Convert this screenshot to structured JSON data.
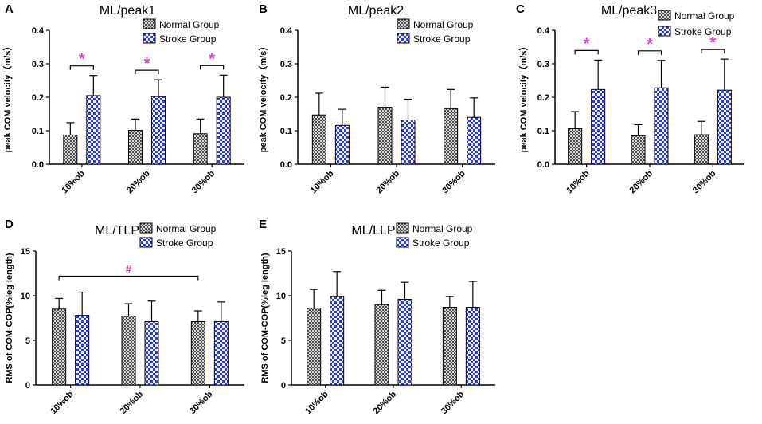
{
  "legend": {
    "normal": "Normal Group",
    "stroke": "Stroke Group"
  },
  "colors": {
    "normal_fill": "#9a9a9a",
    "stroke_fill": "#2b39e6",
    "significance": "#e83ecb",
    "axis": "#000000"
  },
  "chart_data": [
    {
      "type": "bar",
      "panel": "A",
      "title": "ML/peak1",
      "ylabel": "peak COM velocity（m/s）",
      "ylim": [
        0,
        0.4
      ],
      "yticks": [
        "0.0",
        "0.1",
        "0.2",
        "0.3",
        "0.4"
      ],
      "categories": [
        "10%ob",
        "20%ob",
        "30%ob"
      ],
      "series": [
        {
          "name": "Normal Group",
          "values": [
            0.087,
            0.101,
            0.091
          ],
          "errors": [
            0.037,
            0.034,
            0.044
          ]
        },
        {
          "name": "Stroke Group",
          "values": [
            0.205,
            0.202,
            0.2
          ],
          "errors": [
            0.06,
            0.05,
            0.066
          ]
        }
      ],
      "annotations": [
        {
          "type": "pair",
          "category": 0,
          "symbol": "*"
        },
        {
          "type": "pair",
          "category": 1,
          "symbol": "*"
        },
        {
          "type": "pair",
          "category": 2,
          "symbol": "*"
        }
      ]
    },
    {
      "type": "bar",
      "panel": "B",
      "title": "ML/peak2",
      "ylabel": "peak COM velocity（m/s）",
      "ylim": [
        0,
        0.4
      ],
      "yticks": [
        "0.0",
        "0.1",
        "0.2",
        "0.3",
        "0.4"
      ],
      "categories": [
        "10%ob",
        "20%ob",
        "30%ob"
      ],
      "series": [
        {
          "name": "Normal Group",
          "values": [
            0.147,
            0.17,
            0.166
          ],
          "errors": [
            0.065,
            0.06,
            0.057
          ]
        },
        {
          "name": "Stroke Group",
          "values": [
            0.116,
            0.132,
            0.14
          ],
          "errors": [
            0.048,
            0.062,
            0.058
          ]
        }
      ],
      "annotations": []
    },
    {
      "type": "bar",
      "panel": "C",
      "title": "ML/peak3",
      "ylabel": "peak COM velocity（m/s）",
      "ylim": [
        0,
        0.4
      ],
      "yticks": [
        "0.0",
        "0.1",
        "0.2",
        "0.3",
        "0.4"
      ],
      "categories": [
        "10%ob",
        "20%ob",
        "30%ob"
      ],
      "series": [
        {
          "name": "Normal Group",
          "values": [
            0.106,
            0.085,
            0.088
          ],
          "errors": [
            0.051,
            0.033,
            0.04
          ]
        },
        {
          "name": "Stroke Group",
          "values": [
            0.223,
            0.228,
            0.221
          ],
          "errors": [
            0.088,
            0.082,
            0.093
          ]
        }
      ],
      "annotations": [
        {
          "type": "pair",
          "category": 0,
          "symbol": "*"
        },
        {
          "type": "pair",
          "category": 1,
          "symbol": "*"
        },
        {
          "type": "pair",
          "category": 2,
          "symbol": "*"
        }
      ]
    },
    {
      "type": "bar",
      "panel": "D",
      "title": "ML/TLP",
      "ylabel": "RMS of COM-COP(%leg length)",
      "ylim": [
        0,
        15
      ],
      "yticks": [
        "0",
        "5",
        "10",
        "15"
      ],
      "categories": [
        "10%ob",
        "20%ob",
        "30%ob"
      ],
      "series": [
        {
          "name": "Normal Group",
          "values": [
            8.5,
            7.7,
            7.1
          ],
          "errors": [
            1.2,
            1.4,
            1.2
          ]
        },
        {
          "name": "Stroke Group",
          "values": [
            7.8,
            7.1,
            7.1
          ],
          "errors": [
            2.6,
            2.3,
            2.2
          ]
        }
      ],
      "annotations": [
        {
          "type": "span",
          "from_category": 0,
          "to_category": 2,
          "symbol": "#"
        }
      ]
    },
    {
      "type": "bar",
      "panel": "E",
      "title": "ML/LLP",
      "ylabel": "RMS of COM-COP(%leg length)",
      "ylim": [
        0,
        15
      ],
      "yticks": [
        "0",
        "5",
        "10",
        "15"
      ],
      "categories": [
        "10%ob",
        "20%ob",
        "30%ob"
      ],
      "series": [
        {
          "name": "Normal Group",
          "values": [
            8.6,
            9.0,
            8.7
          ],
          "errors": [
            2.1,
            1.6,
            1.2
          ]
        },
        {
          "name": "Stroke Group",
          "values": [
            9.9,
            9.6,
            8.7
          ],
          "errors": [
            2.8,
            1.9,
            2.9
          ]
        }
      ],
      "annotations": []
    }
  ]
}
